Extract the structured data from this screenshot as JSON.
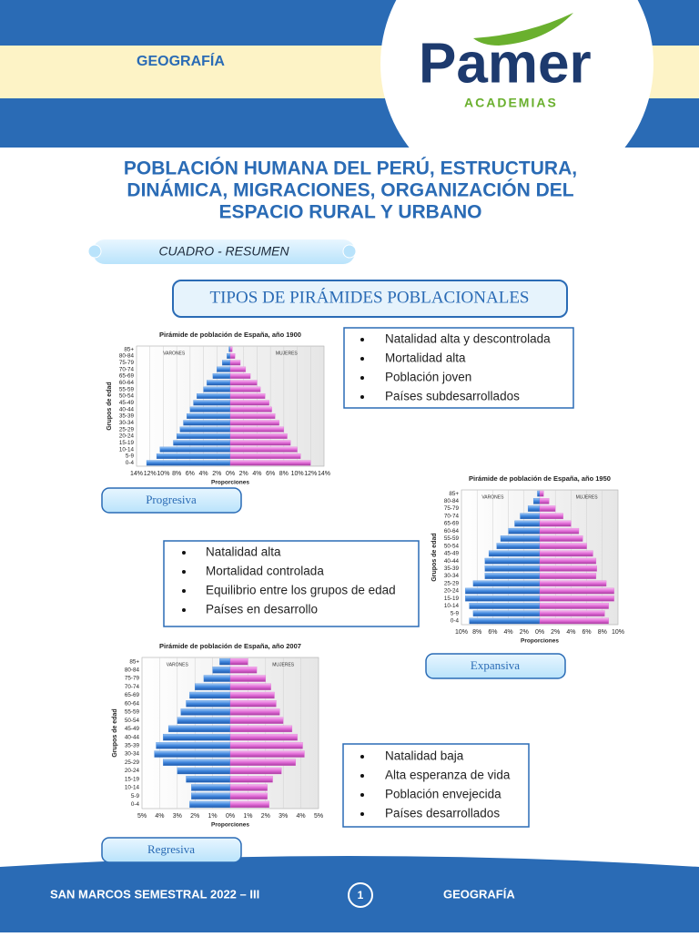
{
  "header": {
    "subject": "GEOGRAFÍA",
    "logo": "Pamer",
    "logo_sub": "ACADEMIAS"
  },
  "title_lines": [
    "POBLACIÓN HUMANA DEL PERÚ, ESTRUCTURA,",
    "DINÁMICA, MIGRACIONES, ORGANIZACIÓN DEL",
    "ESPACIO RURAL Y URBANO"
  ],
  "summary_label": "CUADRO - RESUMEN",
  "section_title": "TIPOS DE PIRÁMIDES POBLACIONALES",
  "age_groups": [
    "85+",
    "80-84",
    "75-79",
    "70-74",
    "65-69",
    "60-64",
    "55-59",
    "50-54",
    "45-49",
    "40-44",
    "35-39",
    "30-34",
    "25-29",
    "20-24",
    "15-19",
    "10-14",
    "5-9",
    "0-4"
  ],
  "pyramids": [
    {
      "type": "pyramid",
      "title": "Pirámide de población de España, año 1900",
      "xlabel": "Proporciones",
      "ylabel": "Grupos de edad",
      "xlim": [
        -14,
        14
      ],
      "xticks": [
        {
          "value": -14,
          "label": "14%"
        },
        {
          "value": -12,
          "label": "12%"
        },
        {
          "value": -10,
          "label": "10%"
        },
        {
          "value": -8,
          "label": "8%"
        },
        {
          "value": -6,
          "label": "6%"
        },
        {
          "value": -4,
          "label": "4%"
        },
        {
          "value": -2,
          "label": "2%"
        },
        {
          "value": 0,
          "label": "0%"
        },
        {
          "value": 2,
          "label": "2%"
        },
        {
          "value": 4,
          "label": "4%"
        },
        {
          "value": 6,
          "label": "6%"
        },
        {
          "value": 8,
          "label": "8%"
        },
        {
          "value": 10,
          "label": "10%"
        },
        {
          "value": 12,
          "label": "12%"
        },
        {
          "value": 14,
          "label": "14%"
        }
      ],
      "series": [
        {
          "name": "VARONES",
          "color": "#3f86dd",
          "values": [
            0.2,
            0.5,
            1.2,
            2,
            2.6,
            3.5,
            4,
            5,
            5.5,
            6,
            6.5,
            7,
            7.5,
            8,
            8.5,
            10.5,
            11,
            12.5
          ]
        },
        {
          "name": "MUJERES",
          "color": "#e06ad6",
          "values": [
            0.3,
            0.7,
            1.5,
            2.3,
            3,
            4,
            4.5,
            5.2,
            5.8,
            6.2,
            6.7,
            7.3,
            8,
            8.5,
            9,
            10,
            10.5,
            12
          ]
        }
      ]
    },
    {
      "type": "pyramid",
      "title": "Pirámide de población de España, año 1950",
      "xlabel": "Proporciones",
      "ylabel": "Grupos de edad",
      "xlim": [
        -10,
        10
      ],
      "xticks": [
        {
          "value": -10,
          "label": "10%"
        },
        {
          "value": -8,
          "label": "8%"
        },
        {
          "value": -6,
          "label": "6%"
        },
        {
          "value": -4,
          "label": "4%"
        },
        {
          "value": -2,
          "label": "2%"
        },
        {
          "value": 0,
          "label": "0%"
        },
        {
          "value": 2,
          "label": "2%"
        },
        {
          "value": 4,
          "label": "4%"
        },
        {
          "value": 6,
          "label": "6%"
        },
        {
          "value": 8,
          "label": "8%"
        },
        {
          "value": 10,
          "label": "10%"
        }
      ],
      "series": [
        {
          "name": "VARONES",
          "color": "#3f86dd",
          "values": [
            0.3,
            0.8,
            1.5,
            2.5,
            3.2,
            4,
            5,
            5.5,
            6.5,
            7,
            7,
            7,
            8.5,
            9.5,
            9.5,
            9,
            8.5,
            9
          ]
        },
        {
          "name": "MUJERES",
          "color": "#e06ad6",
          "values": [
            0.5,
            1.2,
            2,
            3,
            4,
            5,
            5.5,
            6,
            6.8,
            7.2,
            7.3,
            7.2,
            8.5,
            9.5,
            9.5,
            8.8,
            8.3,
            8.8
          ]
        }
      ]
    },
    {
      "type": "pyramid",
      "title": "Pirámide de población de España, año 2007",
      "xlabel": "Proporciones",
      "ylabel": "Grupos de edad",
      "xlim": [
        -5,
        5
      ],
      "xticks": [
        {
          "value": -5,
          "label": "5%"
        },
        {
          "value": -4,
          "label": "4%"
        },
        {
          "value": -3,
          "label": "3%"
        },
        {
          "value": -2,
          "label": "2%"
        },
        {
          "value": -1,
          "label": "1%"
        },
        {
          "value": 0,
          "label": "0%"
        },
        {
          "value": 1,
          "label": "1%"
        },
        {
          "value": 2,
          "label": "2%"
        },
        {
          "value": 3,
          "label": "3%"
        },
        {
          "value": 4,
          "label": "4%"
        },
        {
          "value": 5,
          "label": "5%"
        }
      ],
      "series": [
        {
          "name": "VARONES",
          "color": "#3f86dd",
          "values": [
            0.6,
            1,
            1.5,
            2,
            2.3,
            2.5,
            2.8,
            3,
            3.5,
            3.8,
            4.2,
            4.3,
            3.8,
            3,
            2.5,
            2.2,
            2.2,
            2.3
          ]
        },
        {
          "name": "MUJERES",
          "color": "#e06ad6",
          "values": [
            1,
            1.5,
            2,
            2.3,
            2.5,
            2.6,
            2.8,
            3,
            3.5,
            3.8,
            4.1,
            4.2,
            3.7,
            2.9,
            2.4,
            2.1,
            2.1,
            2.2
          ]
        }
      ]
    }
  ],
  "types": [
    {
      "name": "Progresiva",
      "features": [
        "Natalidad alta y descontrolada",
        "Mortalidad alta",
        "Población joven",
        "Países subdesarrollados"
      ]
    },
    {
      "name": "Expansiva",
      "features": [
        "Natalidad alta",
        "Mortalidad controlada",
        "Equilibrio entre los grupos de edad",
        "Países en desarrollo"
      ]
    },
    {
      "name": "Regresiva",
      "features": [
        "Natalidad baja",
        "Alta esperanza de vida",
        "Población envejecida",
        "Países desarrollados"
      ]
    }
  ],
  "footer": {
    "left": "SAN MARCOS SEMESTRAL 2022 – III",
    "page": "1",
    "right": "GEOGRAFÍA"
  }
}
